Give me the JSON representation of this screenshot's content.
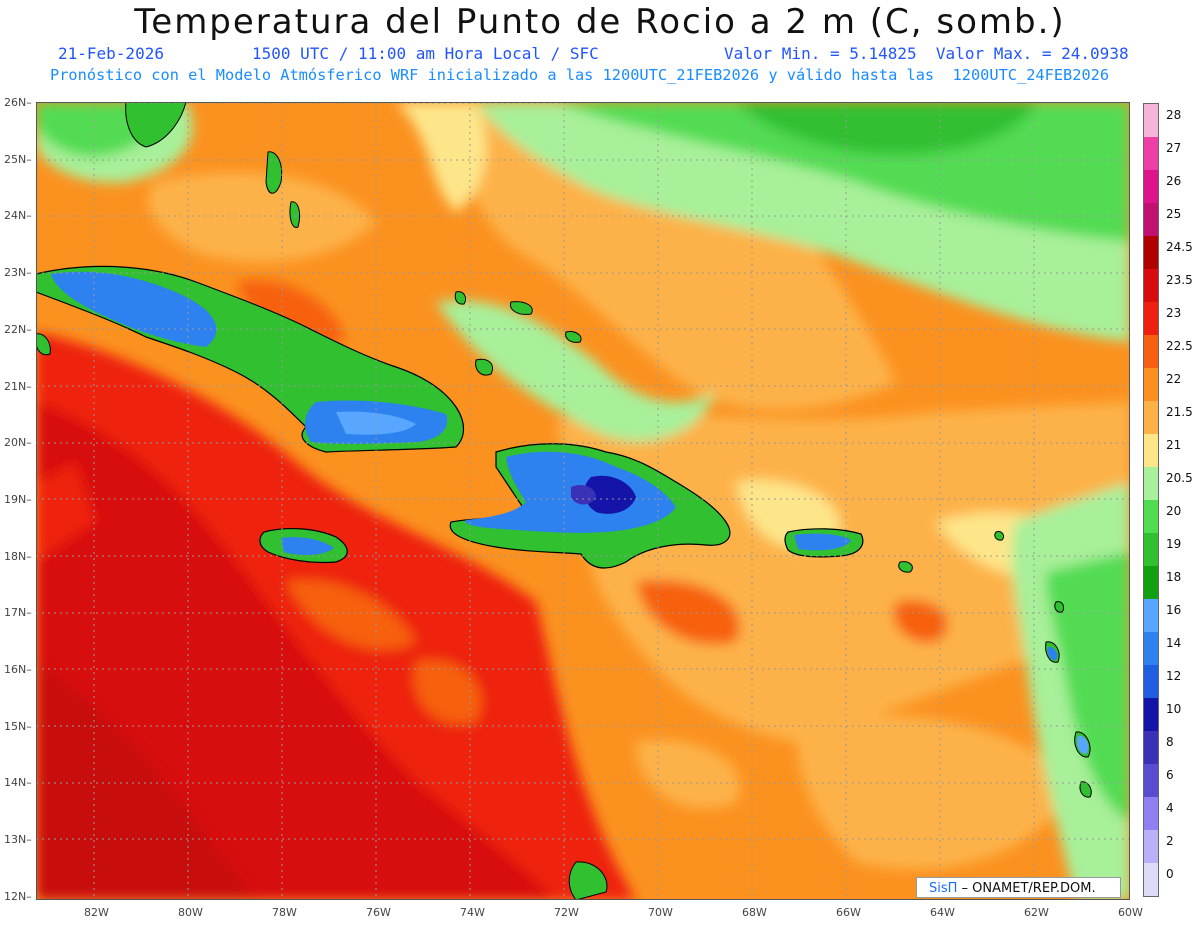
{
  "header": {
    "title": "Temperatura del Punto de Rocio a 2 m (C, somb.)",
    "date": "21-Feb-2026",
    "time": "1500 UTC / 11:00 am Hora Local / SFC",
    "min_max": "Valor Min. = 5.14825  Valor Max. = 24.0938",
    "model_line": "Pronóstico con el Modelo Atmósferico WRF inicializado a las 1200UTC_21FEB2026 y válido hasta las  1200UTC_24FEB2026"
  },
  "lat_labels": [
    "26N",
    "25N",
    "24N",
    "23N",
    "22N",
    "21N",
    "20N",
    "19N",
    "18N",
    "17N",
    "16N",
    "15N",
    "14N",
    "13N",
    "12N"
  ],
  "lon_labels": [
    "82W",
    "80W",
    "78W",
    "76W",
    "74W",
    "72W",
    "70W",
    "68W",
    "66W",
    "64W",
    "62W",
    "60W"
  ],
  "colorbar": {
    "levels": [
      "28",
      "27",
      "26",
      "25",
      "24.5",
      "23.5",
      "23",
      "22.5",
      "22",
      "21.5",
      "21",
      "20.5",
      "20",
      "19",
      "18",
      "16",
      "14",
      "12",
      "10",
      "8",
      "6",
      "4",
      "2",
      "0"
    ],
    "colors": [
      "#f5b4d8",
      "#ee3fa6",
      "#e0148a",
      "#c01070",
      "#b00000",
      "#d80c0c",
      "#ee2010",
      "#f76010",
      "#fb9220",
      "#fdb248",
      "#fde68a",
      "#a8f09a",
      "#52dc52",
      "#30c030",
      "#10a010",
      "#58a6ff",
      "#2e82f0",
      "#1f5ee0",
      "#1414a8",
      "#3a32b6",
      "#5a4cd0",
      "#8e80f0",
      "#b8b0f8",
      "#dcdcf8"
    ]
  },
  "credit": {
    "sis": "SisΠ",
    "rest": " – ONAMET/REP.DOM."
  },
  "colors": {
    "coast": "#000000",
    "grid": "#9a9a9a",
    "title_blue": "#2255ff",
    "sub_blue": "#1a8cff"
  }
}
